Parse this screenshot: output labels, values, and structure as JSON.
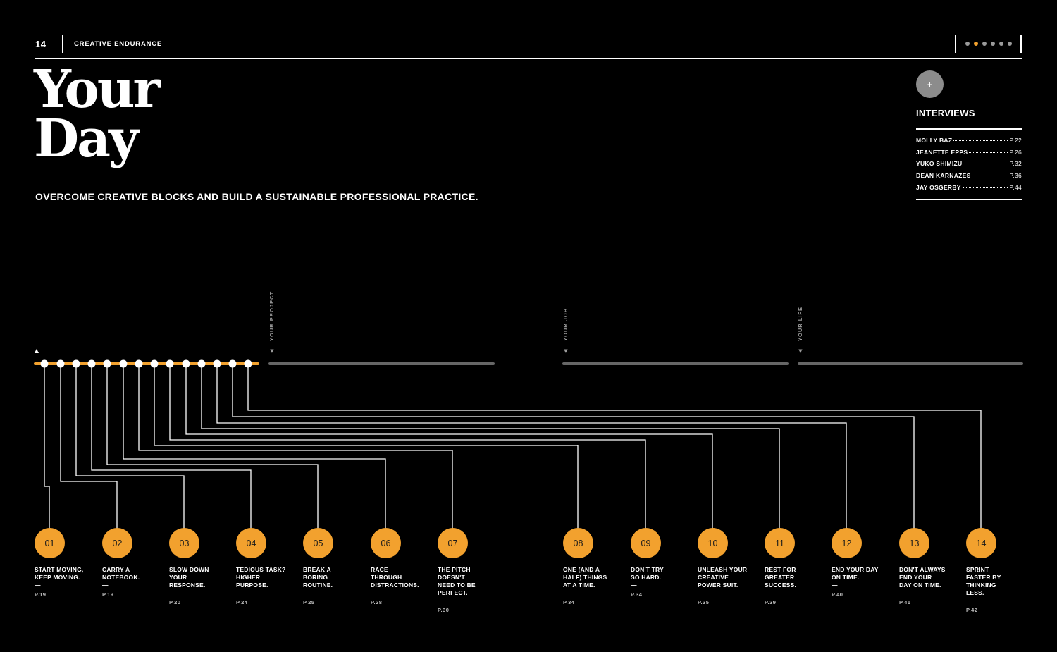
{
  "header": {
    "page_number": "14",
    "section": "CREATIVE ENDURANCE",
    "pager_count": 6,
    "pager_active_index": 1
  },
  "title": {
    "line1": "Your",
    "line2": "Day"
  },
  "subtitle": "OVERCOME CREATIVE BLOCKS AND BUILD A SUSTAINABLE PROFESSIONAL PRACTICE.",
  "interviews": {
    "plus": "+",
    "title": "INTERVIEWS",
    "items": [
      {
        "name": "MOLLY BAZ",
        "page": "P.22"
      },
      {
        "name": "JEANETTE EPPS",
        "page": "P.26"
      },
      {
        "name": "YUKO SHIMIZU",
        "page": "P.32"
      },
      {
        "name": "DEAN KARNAZES",
        "page": "P.36"
      },
      {
        "name": "JAY OSGERBY",
        "page": "P.44"
      }
    ]
  },
  "timeline": {
    "start_marker": "▲",
    "sections": [
      {
        "label": "YOUR PROJECT",
        "arrow": "▼"
      },
      {
        "label": "YOUR JOB",
        "arrow": "▼"
      },
      {
        "label": "YOUR LIFE",
        "arrow": "▼"
      }
    ],
    "colors": {
      "accent": "#f2a12e",
      "track": "#666666",
      "line": "#ffffff"
    }
  },
  "steps": [
    {
      "number": "01",
      "title": "START MOVING,\nKEEP MOVING.",
      "dash": "—",
      "page": "P.19"
    },
    {
      "number": "02",
      "title": "CARRY A\nNOTEBOOK.",
      "dash": "—",
      "page": "P.19"
    },
    {
      "number": "03",
      "title": "SLOW DOWN\nYOUR\nRESPONSE.",
      "dash": "—",
      "page": "P.20"
    },
    {
      "number": "04",
      "title": "TEDIOUS TASK?\nHIGHER\nPURPOSE.",
      "dash": "—",
      "page": "P.24"
    },
    {
      "number": "05",
      "title": "BREAK A\nBORING\nROUTINE.",
      "dash": "—",
      "page": "P.25"
    },
    {
      "number": "06",
      "title": "RACE\nTHROUGH\nDISTRACTIONS.",
      "dash": "—",
      "page": "P.28"
    },
    {
      "number": "07",
      "title": "THE PITCH\nDOESN'T\nNEED TO BE\nPERFECT.",
      "dash": "—",
      "page": "P.30"
    },
    {
      "number": "08",
      "title": "ONE (AND A\nHALF) THINGS\nAT A TIME.",
      "dash": "—",
      "page": "P.34"
    },
    {
      "number": "09",
      "title": "DON'T TRY\nSO HARD.",
      "dash": "—",
      "page": "P.34"
    },
    {
      "number": "10",
      "title": "UNLEASH YOUR\nCREATIVE\nPOWER SUIT.",
      "dash": "—",
      "page": "P.35"
    },
    {
      "number": "11",
      "title": "REST FOR\nGREATER\nSUCCESS.",
      "dash": "—",
      "page": "P.39"
    },
    {
      "number": "12",
      "title": "END YOUR DAY\nON TIME.",
      "dash": "—",
      "page": "P.40"
    },
    {
      "number": "13",
      "title": "DON'T ALWAYS\nEND YOUR\nDAY ON TIME.",
      "dash": "—",
      "page": "P.41"
    },
    {
      "number": "14",
      "title": "SPRINT\nFASTER BY\nTHINKING\nLESS.",
      "dash": "—",
      "page": "P.42"
    }
  ]
}
